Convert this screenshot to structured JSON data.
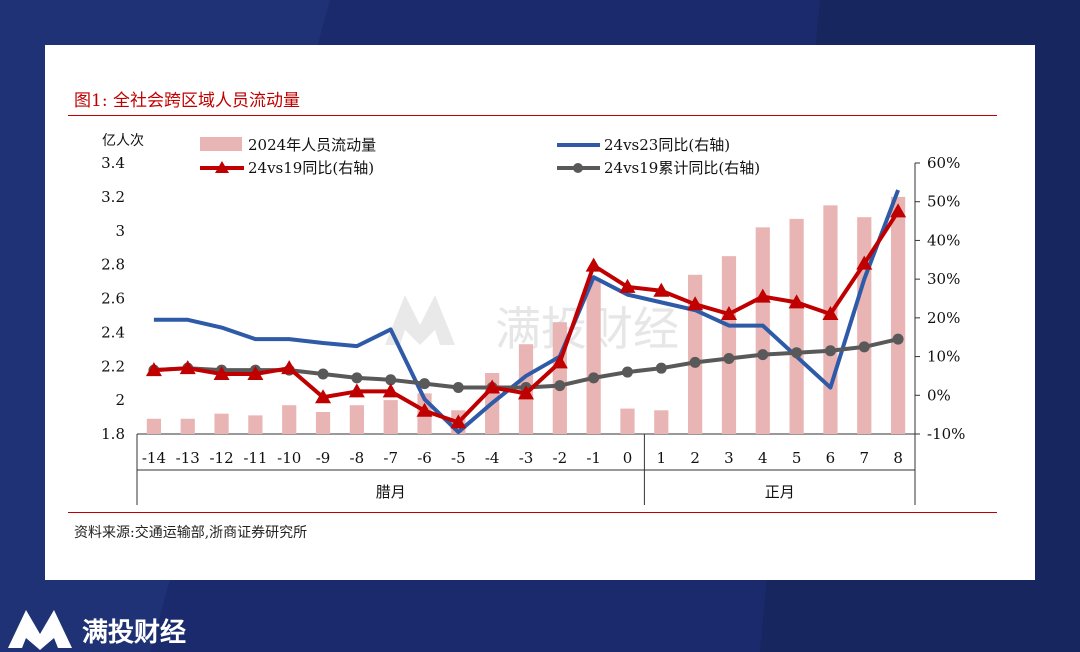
{
  "figure_title": "图1:  全社会跨区域人员流动量",
  "source_note": "资料来源:交通运输部,浙商证券研究所",
  "watermark": "满投财经",
  "brand": "满投财经",
  "colors": {
    "bar": "#e8b4b4",
    "line_24vs23": "#2e5aa8",
    "line_24vs19": "#c00000",
    "line_cum": "#595959",
    "title_red": "#c00000"
  },
  "chart_data": {
    "type": "bar+line",
    "left_axis_unit": "亿人次",
    "x": [
      "-14",
      "-13",
      "-12",
      "-11",
      "-10",
      "-9",
      "-8",
      "-7",
      "-6",
      "-5",
      "-4",
      "-3",
      "-2",
      "-1",
      "0",
      "1",
      "2",
      "3",
      "4",
      "5",
      "6",
      "7",
      "8"
    ],
    "group_labels": [
      "腊月",
      "正月"
    ],
    "y_left": {
      "min": 1.8,
      "max": 3.4,
      "ticks": [
        "1.8",
        "2",
        "2.2",
        "2.4",
        "2.6",
        "2.8",
        "3",
        "3.2",
        "3.4"
      ]
    },
    "y_right": {
      "min": -10,
      "max": 60,
      "ticks": [
        "-10%",
        "0%",
        "10%",
        "20%",
        "30%",
        "40%",
        "50%",
        "60%"
      ]
    },
    "series": [
      {
        "name": "2024年人员流动量",
        "kind": "bar",
        "axis": "left",
        "values": [
          1.89,
          1.89,
          1.92,
          1.91,
          1.97,
          1.93,
          1.97,
          2.0,
          2.04,
          1.94,
          2.16,
          2.33,
          2.46,
          2.72,
          1.95,
          1.94,
          2.74,
          2.85,
          3.02,
          3.07,
          3.15,
          3.08,
          3.2
        ]
      },
      {
        "name": "24vs23同比(右轴)",
        "kind": "line",
        "axis": "right",
        "values": [
          19.5,
          19.5,
          17.5,
          14.5,
          14.5,
          13.5,
          12.7,
          17.0,
          -1.0,
          -9.5,
          -2.0,
          5.0,
          10.0,
          30.5,
          26.0,
          24.0,
          22.0,
          18.0,
          18.0,
          10.0,
          2.0,
          30.0,
          53.0
        ]
      },
      {
        "name": "24vs19同比(右轴)",
        "kind": "line-triangle",
        "axis": "right",
        "values": [
          6.5,
          7.0,
          5.5,
          5.5,
          7.0,
          -0.5,
          1.0,
          1.0,
          -4.0,
          -7.0,
          2.0,
          0.5,
          8.5,
          33.5,
          28.0,
          27.0,
          23.5,
          21.0,
          25.5,
          24.0,
          21.0,
          34.0,
          47.5
        ]
      },
      {
        "name": "24vs19累计同比(右轴)",
        "kind": "line-circle",
        "axis": "right",
        "values": [
          6.5,
          7.0,
          6.5,
          6.5,
          6.5,
          5.5,
          4.5,
          4.0,
          3.0,
          2.0,
          2.0,
          2.0,
          2.5,
          4.5,
          6.0,
          7.0,
          8.5,
          9.5,
          10.5,
          11.0,
          11.5,
          12.5,
          14.5
        ]
      }
    ]
  }
}
